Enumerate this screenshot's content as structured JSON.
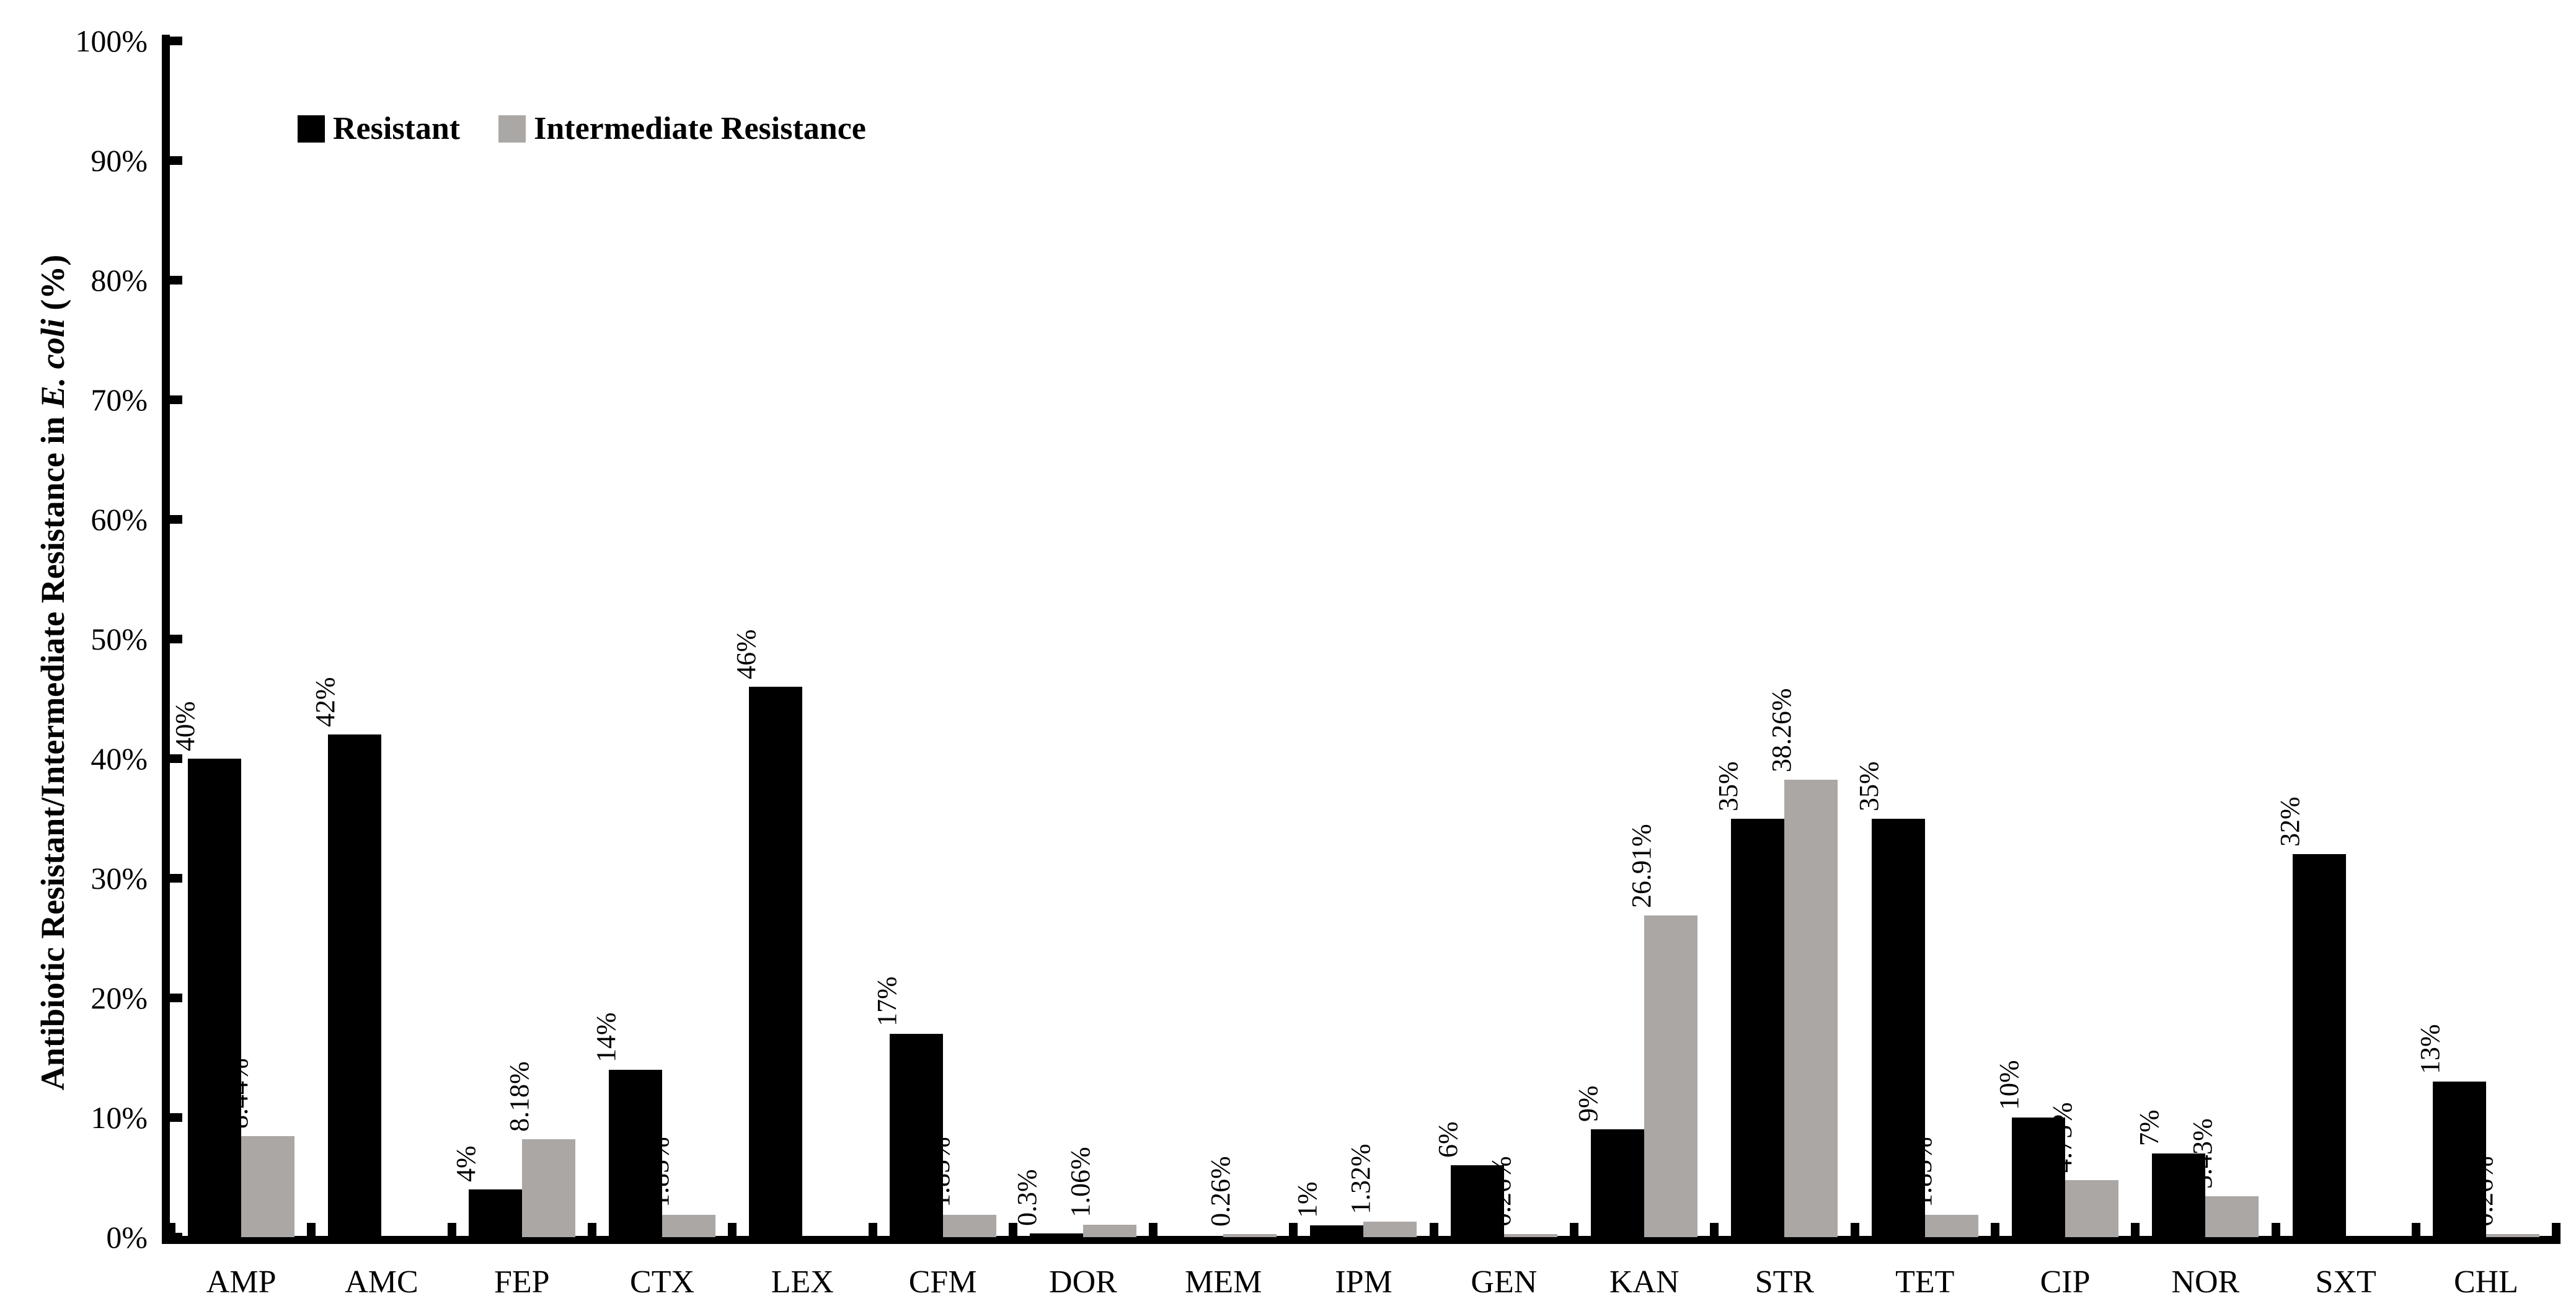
{
  "chart_data": {
    "type": "bar",
    "title": "",
    "xlabel": "",
    "ylabel": "Antibiotic Resistant/Intermediate Resistance in E. coli (%)",
    "ylabel_parts": [
      {
        "text": "Antibiotic Resistant/Intermediate Resistance in ",
        "italic": false
      },
      {
        "text": "E. coli",
        "italic": true
      },
      {
        "text": " (%)",
        "italic": false
      }
    ],
    "ylim": [
      0,
      100
    ],
    "ytick_step": 10,
    "ytick_labels": [
      "0%",
      "10%",
      "20%",
      "30%",
      "40%",
      "50%",
      "60%",
      "70%",
      "80%",
      "90%",
      "100%"
    ],
    "grid": false,
    "legend_position": "top-left",
    "background": "#ffffff",
    "axis_color": "#000000",
    "categories": [
      "AMP",
      "AMC",
      "FEP",
      "CTX",
      "LEX",
      "CFM",
      "DOR",
      "MEM",
      "IPM",
      "GEN",
      "KAN",
      "STR",
      "TET",
      "CIP",
      "NOR",
      "SXT",
      "CHL"
    ],
    "series": [
      {
        "name": "Resistant",
        "color": "#000000",
        "values": [
          40,
          42,
          4,
          14,
          46,
          17,
          0.3,
          0,
          1,
          6,
          9,
          35,
          35,
          10,
          7,
          32,
          13
        ],
        "labels": [
          "40%",
          "42%",
          "4%",
          "14%",
          "46%",
          "17%",
          "0.3%",
          "",
          "1%",
          "6%",
          "9%",
          "35%",
          "35%",
          "10%",
          "7%",
          "32%",
          "13%"
        ]
      },
      {
        "name": "Intermediate Resistance",
        "color": "#aba7a4",
        "values": [
          8.44,
          0,
          8.18,
          1.85,
          0,
          1.85,
          1.06,
          0.26,
          1.32,
          0.26,
          26.91,
          38.26,
          1.85,
          4.75,
          3.43,
          0,
          0.26
        ],
        "labels": [
          "8.44%",
          "",
          "8.18%",
          "1.85%",
          "",
          "1.85%",
          "1.06%",
          "0.26%",
          "1.32%",
          "0.26%",
          "26.91%",
          "38.26%",
          "1.85%",
          "4.75%",
          "3.43%",
          "",
          "0.26%"
        ]
      }
    ]
  }
}
